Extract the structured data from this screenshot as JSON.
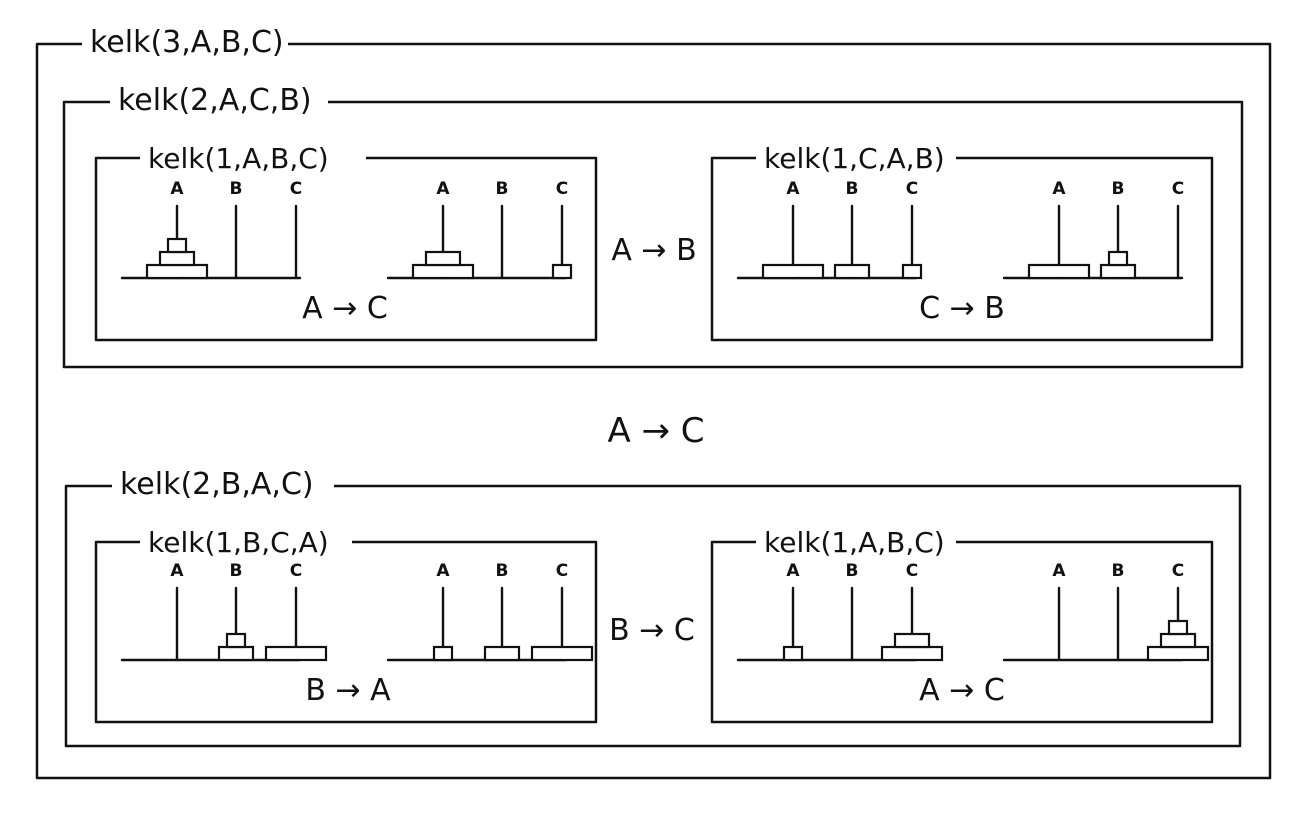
{
  "outer": {
    "title": "kelk(3,A,B,C)"
  },
  "middle_move": "A → C",
  "sections": [
    {
      "title": "kelk(2,A,C,B)",
      "center_move": "A → B",
      "boxes": [
        {
          "title": "kelk(1,A,B,C)",
          "move": "A → C",
          "states": [
            {
              "pegs": [
                "A",
                "B",
                "C"
              ],
              "disks": [
                [
                  3,
                  2,
                  1
                ],
                [],
                []
              ]
            },
            {
              "pegs": [
                "A",
                "B",
                "C"
              ],
              "disks": [
                [
                  3,
                  2
                ],
                [],
                [
                  1
                ]
              ]
            }
          ]
        },
        {
          "title": "kelk(1,C,A,B)",
          "move": "C → B",
          "states": [
            {
              "pegs": [
                "A",
                "B",
                "C"
              ],
              "disks": [
                [
                  3
                ],
                [
                  2
                ],
                [
                  1
                ]
              ]
            },
            {
              "pegs": [
                "A",
                "B",
                "C"
              ],
              "disks": [
                [
                  3
                ],
                [
                  2,
                  1
                ],
                []
              ]
            }
          ]
        }
      ]
    },
    {
      "title": "kelk(2,B,A,C)",
      "center_move": "B → C",
      "boxes": [
        {
          "title": "kelk(1,B,C,A)",
          "move": "B → A",
          "states": [
            {
              "pegs": [
                "A",
                "B",
                "C"
              ],
              "disks": [
                [],
                [
                  2,
                  1
                ],
                [
                  3
                ]
              ]
            },
            {
              "pegs": [
                "A",
                "B",
                "C"
              ],
              "disks": [
                [
                  1
                ],
                [
                  2
                ],
                [
                  3
                ]
              ]
            }
          ]
        },
        {
          "title": "kelk(1,A,B,C)",
          "move": "A → C",
          "states": [
            {
              "pegs": [
                "A",
                "B",
                "C"
              ],
              "disks": [
                [
                  1
                ],
                [],
                [
                  3,
                  2
                ]
              ]
            },
            {
              "pegs": [
                "A",
                "B",
                "C"
              ],
              "disks": [
                [],
                [],
                [
                  3,
                  2,
                  1
                ]
              ]
            }
          ]
        }
      ]
    }
  ]
}
